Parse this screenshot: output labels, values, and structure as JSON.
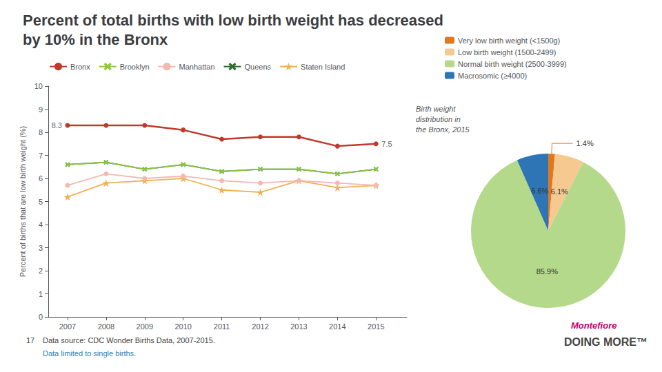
{
  "chart_data": [
    {
      "type": "line",
      "title": "Percent of total births with low birth weight has decreased\nby 10% in the Bronx",
      "x": [
        2007,
        2008,
        2009,
        2010,
        2011,
        2012,
        2013,
        2014,
        2015
      ],
      "xlim": [
        2006.5,
        2015.8
      ],
      "xticks": [
        2007,
        2008,
        2009,
        2010,
        2011,
        2012,
        2013,
        2014,
        2015
      ],
      "ylim": [
        0,
        10
      ],
      "yticks": [
        0,
        1,
        2,
        3,
        4,
        5,
        6,
        7,
        8,
        9,
        10
      ],
      "ylabel": "Percent of births that are low birth weight (%)",
      "grid": false,
      "legend": "top",
      "series": [
        {
          "name": "Bronx",
          "color": "#c0392b",
          "marker": "circle",
          "values": [
            8.3,
            8.3,
            8.3,
            8.1,
            7.7,
            7.8,
            7.8,
            7.4,
            7.5
          ]
        },
        {
          "name": "Brooklyn",
          "color": "#8dc63f",
          "marker": "x",
          "values": [
            6.6,
            6.7,
            6.4,
            6.6,
            6.3,
            6.4,
            6.4,
            6.2,
            6.4
          ]
        },
        {
          "name": "Manhattan",
          "color": "#f4b8b0",
          "marker": "circle",
          "values": [
            5.7,
            6.2,
            6.0,
            6.1,
            5.9,
            5.8,
            5.9,
            5.8,
            5.7
          ]
        },
        {
          "name": "Queens",
          "color": "#2d6a2d",
          "marker": "x",
          "values": [
            6.6,
            6.7,
            6.4,
            6.6,
            6.3,
            6.4,
            6.4,
            6.2,
            6.4
          ]
        },
        {
          "name": "Staten Island",
          "color": "#f0b050",
          "marker": "star",
          "values": [
            5.2,
            5.8,
            5.9,
            6.0,
            5.5,
            5.4,
            5.9,
            5.6,
            5.7
          ]
        }
      ],
      "annotations": [
        {
          "text": "8.3",
          "x": 2007,
          "y": 8.3
        },
        {
          "text": "7.5",
          "x": 2015,
          "y": 7.5
        },
        {
          "text": "17"
        },
        {
          "text": "Data source: CDC Wonder Births Data, 2007-2015."
        },
        {
          "text": "Data limited to single births.",
          "color": "#2980b9"
        },
        {
          "text": "Montefiore",
          "color": "#c0006e"
        },
        {
          "text": "DOING MORE™"
        }
      ]
    },
    {
      "type": "pie",
      "title": "Birth weight\ndistribution in\nthe Bronx, 2015",
      "categories": [
        "Very low birth weight (<1500g)",
        "Low birth weight (1500-2499)",
        "Normal birth weight (2500-3999)",
        "Macrosomic (≥4000)"
      ],
      "values": [
        1.4,
        6.1,
        85.9,
        6.6
      ],
      "value_labels": [
        "1.4%",
        "6.1%",
        "85.9%",
        "6.6%"
      ],
      "colors": [
        "#e07820",
        "#f5c990",
        "#b5d98a",
        "#2e75b6"
      ],
      "data_labels": true,
      "legend": "top"
    }
  ]
}
